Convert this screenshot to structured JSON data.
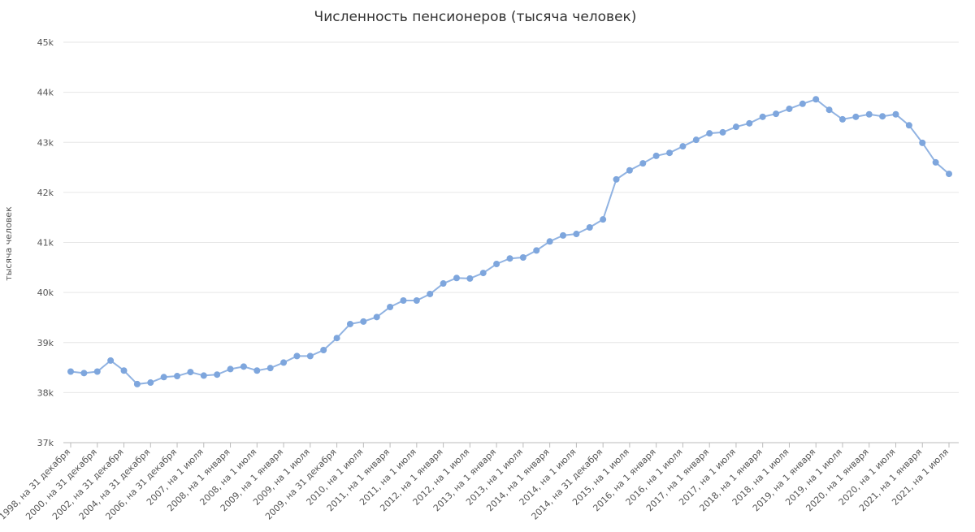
{
  "chart_data": {
    "type": "line",
    "title": "Численность пенсионеров (тысяча человек)",
    "y_label": "тысяча человек",
    "categories": [
      "1998, на 31 декабря",
      null,
      "2000, на 31 декабря",
      null,
      "2002, на 31 декабря",
      null,
      "2004, на 31 декабря",
      null,
      "2006, на 31 декабря",
      null,
      "2007, на 1 июля",
      null,
      "2008, на 1 января",
      null,
      "2008, на 1 июля",
      null,
      "2009, на 1 января",
      null,
      "2009, на 1 июля",
      null,
      "2009, на 31 декабря",
      null,
      "2010, на 1 июля",
      null,
      "2011, на 1 января",
      null,
      "2011, на 1 июля",
      null,
      "2012, на 1 января",
      null,
      "2012, на 1 июля",
      null,
      "2013, на 1 января",
      null,
      "2013, на 1 июля",
      null,
      "2014, на 1 января",
      null,
      "2014, на 1 июля",
      null,
      "2014, на 31 декабря",
      null,
      "2015, на 1 июля",
      null,
      "2016, на 1 января",
      null,
      "2016, на 1 июля",
      null,
      "2017, на 1 января",
      null,
      "2017, на 1 июля",
      null,
      "2018, на 1 января",
      null,
      "2018, на 1 июля",
      null,
      "2019, на 1 января",
      null,
      "2019, на 1 июля",
      null,
      "2020, на 1 января",
      null,
      "2020, на 1 июля",
      null,
      "2021, на 1 января",
      null,
      "2021, на 1 июля"
    ],
    "series": [
      {
        "name": "Численность пенсионеров",
        "color": "#7ea6dd",
        "values": [
          38420,
          38390,
          38420,
          38640,
          38440,
          38170,
          38200,
          38310,
          38330,
          38410,
          38340,
          38360,
          38470,
          38520,
          38440,
          38490,
          38600,
          38730,
          38730,
          38850,
          39090,
          39370,
          39420,
          39510,
          39710,
          39840,
          39840,
          39970,
          40180,
          40290,
          40280,
          40390,
          40570,
          40680,
          40700,
          40840,
          41020,
          41140,
          41170,
          41300,
          41460,
          42260,
          42440,
          42580,
          42730,
          42790,
          42920,
          43050,
          43180,
          43200,
          43310,
          43380,
          43510,
          43570,
          43670,
          43770,
          43860,
          43650,
          43460,
          43510,
          43560,
          43520,
          43560,
          43340,
          42990,
          42600,
          42370
        ]
      }
    ],
    "ylim": [
      37000,
      45000
    ],
    "yticks": [
      {
        "value": 37000,
        "label": "37k"
      },
      {
        "value": 38000,
        "label": "38k"
      },
      {
        "value": 39000,
        "label": "39k"
      },
      {
        "value": 40000,
        "label": "40k"
      },
      {
        "value": 41000,
        "label": "41k"
      },
      {
        "value": 42000,
        "label": "42k"
      },
      {
        "value": 43000,
        "label": "43k"
      },
      {
        "value": 44000,
        "label": "44k"
      },
      {
        "value": 45000,
        "label": "45k"
      }
    ],
    "grid": true
  }
}
